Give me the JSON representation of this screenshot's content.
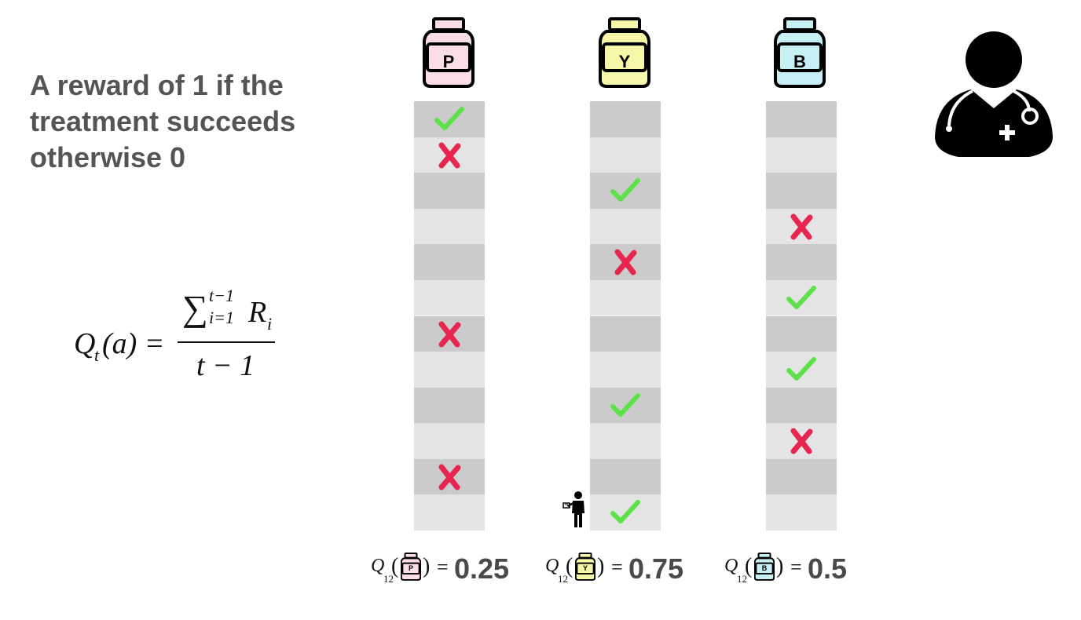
{
  "caption": {
    "line1": "A reward of 1 if the",
    "line2": "treatment succeeds",
    "line3": "otherwise 0"
  },
  "formula": {
    "lhs": "Q",
    "lhs_sub": "t",
    "lhs_arg": "(a) =",
    "sum_symbol": "∑",
    "sum_upper": "t−1",
    "sum_lower": "i=1",
    "summand": "R",
    "summand_sub": "i",
    "denominator": "t − 1"
  },
  "treatments": [
    {
      "letter": "P",
      "fill": "#fbdde8",
      "outcomes": [
        "success",
        "failure",
        "",
        "",
        "",
        "",
        "failure",
        "",
        "",
        "",
        "failure",
        ""
      ],
      "estimate": {
        "q": "Q",
        "sub": "12",
        "letter": "P",
        "eq": "=",
        "value": "0.25"
      }
    },
    {
      "letter": "Y",
      "fill": "#f6f7a9",
      "outcomes": [
        "",
        "",
        "success",
        "",
        "failure",
        "",
        "",
        "",
        "success",
        "",
        "",
        "success"
      ],
      "estimate": {
        "q": "Q",
        "sub": "12",
        "letter": "Y",
        "eq": "=",
        "value": "0.75"
      }
    },
    {
      "letter": "B",
      "fill": "#c7f0f4",
      "outcomes": [
        "",
        "",
        "",
        "failure",
        "",
        "success",
        "",
        "success",
        "",
        "failure",
        "",
        ""
      ],
      "estimate": {
        "q": "Q",
        "sub": "12",
        "letter": "B",
        "eq": "=",
        "value": "0.5"
      }
    }
  ],
  "colors": {
    "success": "#5ee04a",
    "failure": "#e8254e",
    "cell_dark": "#cbcbcb",
    "cell_light": "#e4e4e4",
    "text": "#545454"
  },
  "icons": {
    "doctor": "doctor-icon",
    "patient": "person-icon",
    "bottle": "bottle-icon",
    "success": "check-icon",
    "failure": "cross-icon"
  }
}
